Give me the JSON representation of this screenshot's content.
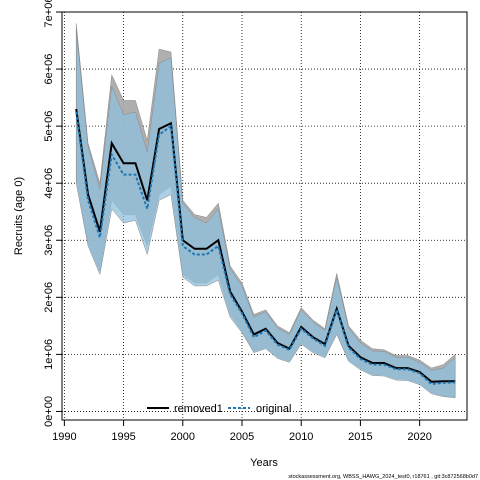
{
  "chart_data": {
    "type": "line",
    "xlabel": "Years",
    "ylabel": "Recruits (age 0)",
    "xlim": [
      1989.8,
      2024.0
    ],
    "ylim": [
      -150000,
      7000000
    ],
    "x_ticks": [
      1990,
      1995,
      2000,
      2005,
      2010,
      2015,
      2020
    ],
    "x_tick_labels": [
      "1990",
      "1995",
      "2000",
      "2005",
      "2010",
      "2015",
      "2020"
    ],
    "y_ticks": [
      0,
      1000000,
      2000000,
      3000000,
      4000000,
      5000000,
      6000000,
      7000000
    ],
    "y_tick_labels": [
      "0e+00",
      "1e+06",
      "2e+06",
      "3e+06",
      "4e+06",
      "5e+06",
      "6e+06",
      "7e+06"
    ],
    "grid": true,
    "legend_position": "bottom",
    "x": [
      1991,
      1992,
      1993,
      1994,
      1995,
      1996,
      1997,
      1998,
      1999,
      2000,
      2001,
      2002,
      2003,
      2004,
      2005,
      2006,
      2007,
      2008,
      2009,
      2010,
      2011,
      2012,
      2013,
      2014,
      2015,
      2016,
      2017,
      2018,
      2019,
      2020,
      2021,
      2022,
      2023
    ],
    "series": [
      {
        "name": "removed1",
        "color": "#000000",
        "line_style": "solid",
        "band_color": "#a6a6a6",
        "values": [
          5300000,
          3800000,
          3150000,
          4700000,
          4350000,
          4350000,
          3700000,
          4950000,
          5050000,
          3000000,
          2850000,
          2850000,
          3000000,
          2100000,
          1750000,
          1350000,
          1450000,
          1200000,
          1100000,
          1480000,
          1300000,
          1180000,
          1800000,
          1150000,
          950000,
          850000,
          850000,
          760000,
          760000,
          690000,
          520000,
          530000,
          530000
        ],
        "upper": [
          6800000,
          4700000,
          4000000,
          5900000,
          5450000,
          5450000,
          4750000,
          6350000,
          6300000,
          3700000,
          3450000,
          3400000,
          3650000,
          2550000,
          2250000,
          1700000,
          1780000,
          1500000,
          1380000,
          1820000,
          1600000,
          1450000,
          2420000,
          1500000,
          1250000,
          1100000,
          1080000,
          980000,
          980000,
          900000,
          760000,
          820000,
          1000000
        ],
        "lower": [
          4100000,
          2950000,
          2450000,
          3700000,
          3450000,
          3450000,
          2900000,
          3800000,
          3950000,
          2400000,
          2250000,
          2250000,
          2400000,
          1700000,
          1400000,
          1050000,
          1120000,
          950000,
          880000,
          1200000,
          1050000,
          960000,
          1380000,
          900000,
          750000,
          650000,
          640000,
          570000,
          560000,
          490000,
          330000,
          270000,
          250000
        ]
      },
      {
        "name": "original",
        "color": "#1f77b4",
        "line_style": "dashed",
        "band_color": "#8fbfdc",
        "values": [
          5250000,
          3700000,
          3050000,
          4500000,
          4150000,
          4150000,
          3550000,
          4850000,
          5000000,
          2900000,
          2750000,
          2750000,
          2900000,
          2050000,
          1720000,
          1300000,
          1420000,
          1170000,
          1080000,
          1450000,
          1280000,
          1150000,
          1780000,
          1120000,
          920000,
          820000,
          820000,
          740000,
          740000,
          670000,
          480000,
          500000,
          510000
        ],
        "upper": [
          6700000,
          4650000,
          3900000,
          5700000,
          5200000,
          5250000,
          4550000,
          6100000,
          6200000,
          3650000,
          3400000,
          3300000,
          3550000,
          2500000,
          2200000,
          1650000,
          1750000,
          1460000,
          1350000,
          1780000,
          1570000,
          1420000,
          2350000,
          1460000,
          1200000,
          1060000,
          1050000,
          950000,
          950000,
          860000,
          720000,
          760000,
          950000
        ],
        "lower": [
          4000000,
          2900000,
          2400000,
          3550000,
          3300000,
          3350000,
          2750000,
          3700000,
          3800000,
          2350000,
          2200000,
          2200000,
          2300000,
          1650000,
          1380000,
          1030000,
          1100000,
          930000,
          860000,
          1180000,
          1030000,
          940000,
          1350000,
          880000,
          730000,
          630000,
          620000,
          550000,
          540000,
          470000,
          310000,
          260000,
          240000
        ]
      }
    ],
    "footer": "stockassessment.org, WBSS_HAWG_2024_test0, r18761 , git:3c872568b0d7"
  }
}
